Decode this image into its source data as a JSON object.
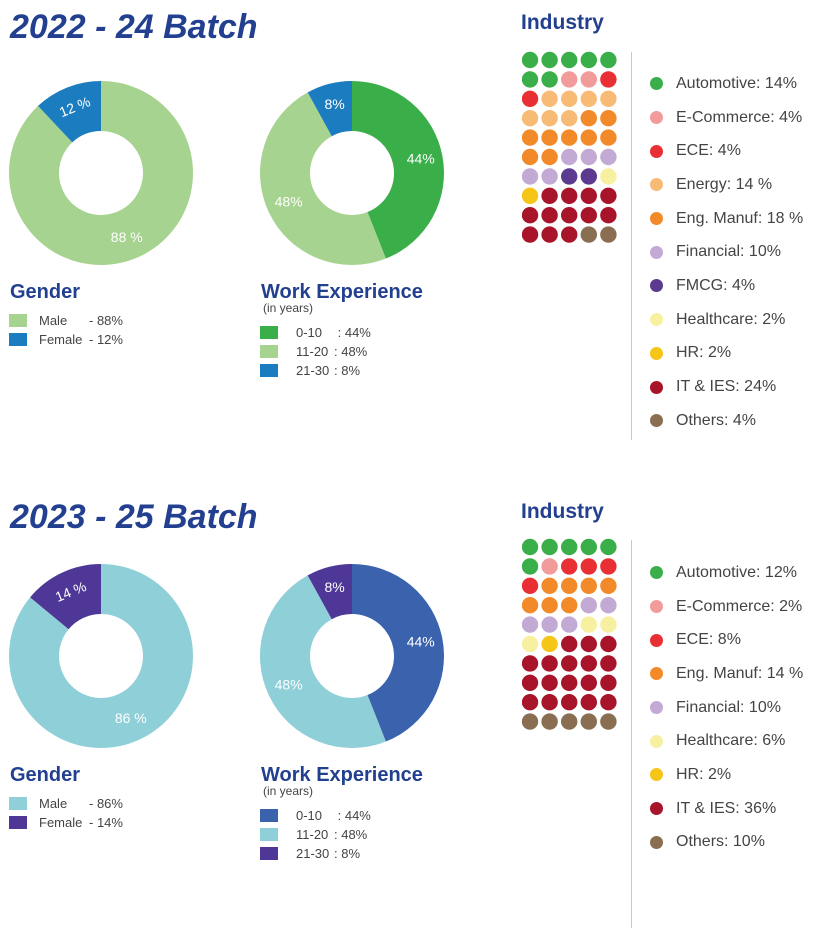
{
  "colors": {
    "automotive": "#3aae49",
    "ecommerce": "#f29b9b",
    "ece": "#e83034",
    "energy": "#f7bb76",
    "engmanuf": "#f28a2a",
    "financial": "#c3aad4",
    "fmcg": "#5b3a90",
    "healthcare": "#f6f0a0",
    "hr": "#f5c518",
    "it": "#a8142a",
    "others": "#8a6e52"
  },
  "batches": [
    {
      "title": "2022 - 24 Batch",
      "gender": {
        "label": "Gender",
        "chart_data": {
          "type": "pie",
          "categories": [
            "Male",
            "Female"
          ],
          "values": [
            88,
            12
          ],
          "slice_labels": [
            "88 %",
            "12 %"
          ],
          "colors": [
            "#a6d38f",
            "#1b7cbf"
          ]
        },
        "legend": [
          {
            "name": "Male",
            "value": "- 88%",
            "color": "#a6d38f"
          },
          {
            "name": "Female",
            "value": "- 12%",
            "color": "#1b7cbf"
          }
        ]
      },
      "work": {
        "label": "Work Experience",
        "sublabel": "(in years)",
        "chart_data": {
          "type": "pie",
          "categories": [
            "0-10",
            "11-20",
            "21-30"
          ],
          "values": [
            44,
            48,
            8
          ],
          "slice_labels": [
            "44%",
            "48%",
            "8%"
          ],
          "colors": [
            "#3aae49",
            "#a6d38f",
            "#1b7cbf"
          ]
        },
        "legend": [
          {
            "name": "0-10",
            "value": " : 44%",
            "color": "#3aae49"
          },
          {
            "name": "11-20",
            "value": ": 48%",
            "color": "#a6d38f"
          },
          {
            "name": "21-30",
            "value": ": 8%",
            "color": "#1b7cbf"
          }
        ]
      },
      "industry": {
        "title": "Industry",
        "chart_data": {
          "type": "waffle",
          "categories": [
            "Automotive",
            "E-Commerce",
            "ECE",
            "Energy",
            "Eng. Manuf",
            "Financial",
            "FMCG",
            "Healthcare",
            "HR",
            "IT & IES",
            "Others"
          ],
          "values": [
            14,
            4,
            4,
            14,
            18,
            10,
            4,
            2,
            2,
            24,
            4
          ],
          "color_keys": [
            "automotive",
            "ecommerce",
            "ece",
            "energy",
            "engmanuf",
            "financial",
            "fmcg",
            "healthcare",
            "hr",
            "it",
            "others"
          ]
        },
        "legend": [
          "Automotive: 14%",
          "E-Commerce: 4%",
          "ECE: 4%",
          "Energy: 14 %",
          "Eng. Manuf: 18 %",
          "Financial: 10%",
          "FMCG: 4%",
          "Healthcare: 2%",
          "HR: 2%",
          "IT & IES: 24%",
          "Others: 4%"
        ]
      }
    },
    {
      "title": "2023 - 25 Batch",
      "gender": {
        "label": "Gender",
        "chart_data": {
          "type": "pie",
          "categories": [
            "Male",
            "Female"
          ],
          "values": [
            86,
            14
          ],
          "slice_labels": [
            "86 %",
            "14 %"
          ],
          "colors": [
            "#8ecfd8",
            "#4e3796"
          ]
        },
        "legend": [
          {
            "name": "Male",
            "value": "- 86%",
            "color": "#8ecfd8"
          },
          {
            "name": "Female",
            "value": "- 14%",
            "color": "#4e3796"
          }
        ]
      },
      "work": {
        "label": "Work Experience",
        "sublabel": "(in years)",
        "chart_data": {
          "type": "pie",
          "categories": [
            "0-10",
            "11-20",
            "21-30"
          ],
          "values": [
            44,
            48,
            8
          ],
          "slice_labels": [
            "44%",
            "48%",
            "8%"
          ],
          "colors": [
            "#3a62ad",
            "#8ecfd8",
            "#4e3796"
          ]
        },
        "legend": [
          {
            "name": "0-10",
            "value": " : 44%",
            "color": "#3a62ad"
          },
          {
            "name": "11-20",
            "value": ": 48%",
            "color": "#8ecfd8"
          },
          {
            "name": "21-30",
            "value": ": 8%",
            "color": "#4e3796"
          }
        ]
      },
      "industry": {
        "title": "Industry",
        "chart_data": {
          "type": "waffle",
          "categories": [
            "Automotive",
            "E-Commerce",
            "ECE",
            "Eng. Manuf",
            "Financial",
            "Healthcare",
            "HR",
            "IT & IES",
            "Others"
          ],
          "values": [
            12,
            2,
            8,
            14,
            10,
            6,
            2,
            36,
            10
          ],
          "color_keys": [
            "automotive",
            "ecommerce",
            "ece",
            "engmanuf",
            "financial",
            "healthcare",
            "hr",
            "it",
            "others"
          ]
        },
        "legend": [
          "Automotive: 12%",
          "E-Commerce: 2%",
          "ECE: 8%",
          "Eng. Manuf: 14 %",
          "Financial: 10%",
          "Healthcare: 6%",
          "HR: 2%",
          "IT & IES: 36%",
          "Others: 10%"
        ]
      }
    }
  ]
}
